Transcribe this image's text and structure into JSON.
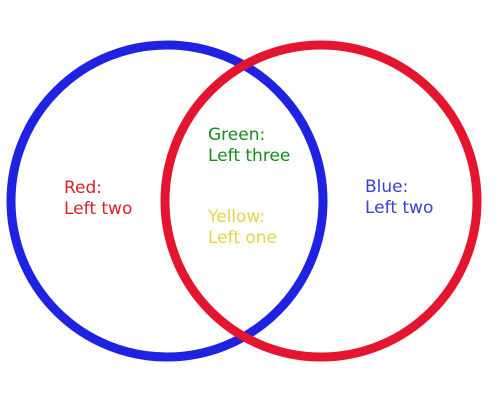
{
  "colors": {
    "blue_ring": "#1f22e0",
    "red_ring": "#e4152e",
    "red_text": "#d81f2a",
    "green_text": "#168d16",
    "yellow_text": "#e8d24a",
    "blue_text": "#3b3fd4"
  },
  "regions": {
    "red": {
      "title": "Red:",
      "value": "Left two"
    },
    "green": {
      "title": "Green:",
      "value": "Left three"
    },
    "yellow": {
      "title": "Yellow:",
      "value": "Left one"
    },
    "blue": {
      "title": "Blue:",
      "value": "Left two"
    }
  }
}
